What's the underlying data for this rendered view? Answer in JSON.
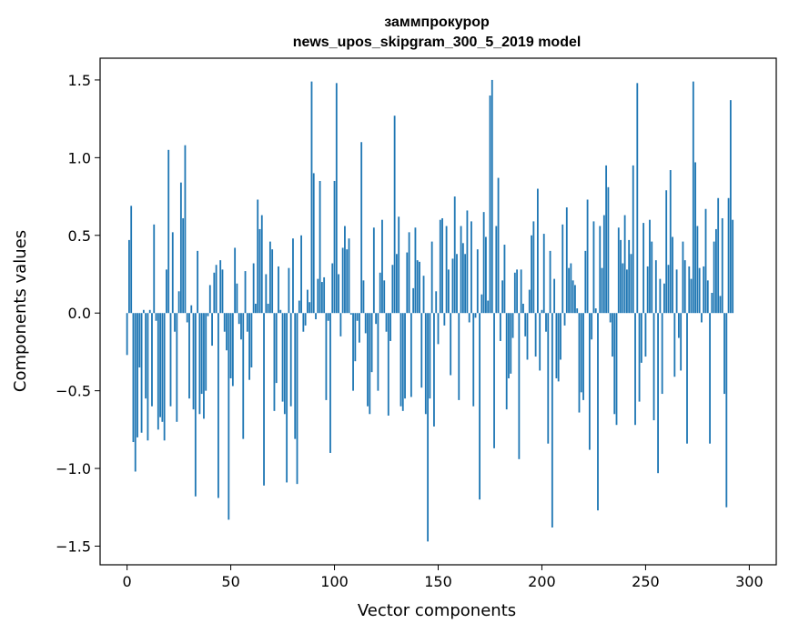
{
  "chart_data": {
    "type": "bar",
    "title": "заммпрокурор",
    "subtitle": "news_upos_skipgram_300_5_2019 model",
    "xlabel": "Vector components",
    "ylabel": "Components values",
    "xlim": [
      -13,
      313
    ],
    "ylim": [
      -1.62,
      1.64
    ],
    "xticks": [
      0,
      50,
      100,
      150,
      200,
      250,
      300
    ],
    "yticks": [
      -1.5,
      -1.0,
      -0.5,
      0.0,
      0.5,
      1.0,
      1.5
    ],
    "grid": false,
    "bar_color": "#1f77b4",
    "values": [
      -0.27,
      0.47,
      0.69,
      -0.83,
      -1.02,
      -0.8,
      -0.35,
      -0.77,
      0.02,
      -0.55,
      -0.82,
      0.02,
      -0.6,
      0.57,
      -0.05,
      -0.75,
      -0.67,
      -0.7,
      -0.82,
      0.28,
      1.05,
      -0.6,
      0.52,
      -0.12,
      -0.7,
      0.14,
      0.84,
      0.61,
      1.08,
      -0.06,
      -0.55,
      0.05,
      -0.62,
      -1.18,
      0.4,
      -0.65,
      -0.52,
      -0.68,
      -0.5,
      -0.02,
      0.18,
      -0.21,
      0.26,
      0.31,
      -1.19,
      0.34,
      0.28,
      -0.12,
      -0.24,
      -1.33,
      -0.42,
      -0.47,
      0.42,
      0.19,
      -0.07,
      -0.17,
      -0.81,
      0.27,
      -0.12,
      -0.43,
      -0.35,
      0.32,
      0.06,
      0.73,
      0.54,
      0.63,
      -1.11,
      0.25,
      0.06,
      0.46,
      0.41,
      -0.63,
      -0.45,
      0.3,
      0.02,
      -0.57,
      -0.65,
      -1.09,
      0.29,
      -0.6,
      0.48,
      -0.81,
      -1.1,
      0.08,
      0.5,
      -0.12,
      -0.08,
      0.15,
      0.07,
      1.49,
      0.9,
      -0.04,
      0.22,
      0.85,
      0.2,
      0.23,
      -0.56,
      -0.05,
      -0.9,
      0.32,
      0.85,
      1.48,
      0.25,
      -0.15,
      0.42,
      0.56,
      0.41,
      0.48,
      -0.01,
      -0.5,
      -0.31,
      -0.05,
      -0.19,
      1.1,
      0.21,
      -0.13,
      -0.6,
      -0.65,
      -0.38,
      0.55,
      -0.07,
      -0.5,
      0.26,
      0.6,
      0.21,
      -0.12,
      -0.66,
      -0.18,
      0.31,
      1.27,
      0.38,
      0.62,
      -0.6,
      -0.63,
      -0.55,
      0.39,
      0.52,
      -0.54,
      0.16,
      0.55,
      0.34,
      0.33,
      -0.48,
      0.24,
      -0.65,
      -1.47,
      -0.55,
      0.46,
      -0.73,
      0.14,
      -0.2,
      0.6,
      0.61,
      -0.08,
      0.56,
      0.28,
      -0.4,
      0.35,
      0.75,
      0.38,
      -0.56,
      0.56,
      0.45,
      0.38,
      0.66,
      -0.06,
      0.59,
      -0.6,
      -0.03,
      0.41,
      -1.2,
      0.12,
      0.65,
      0.49,
      0.08,
      1.4,
      1.5,
      -0.87,
      0.56,
      0.87,
      -0.18,
      0.21,
      0.44,
      -0.62,
      -0.42,
      -0.39,
      -0.16,
      0.26,
      0.28,
      -0.94,
      0.28,
      0.06,
      -0.15,
      -0.3,
      0.15,
      0.5,
      0.59,
      -0.28,
      0.8,
      -0.37,
      0.02,
      0.51,
      -0.12,
      -0.84,
      0.4,
      -1.38,
      0.22,
      -0.42,
      -0.44,
      -0.3,
      0.57,
      -0.08,
      0.68,
      0.29,
      0.32,
      0.21,
      0.18,
      0.03,
      -0.64,
      -0.51,
      -0.56,
      0.4,
      0.73,
      -0.88,
      -0.17,
      0.59,
      0.03,
      -1.27,
      0.56,
      0.29,
      0.63,
      0.95,
      0.81,
      -0.06,
      -0.28,
      -0.65,
      -0.72,
      0.55,
      0.47,
      0.32,
      0.63,
      0.28,
      0.47,
      0.38,
      0.95,
      -0.72,
      1.48,
      -0.57,
      -0.32,
      0.58,
      -0.28,
      0.3,
      0.6,
      0.46,
      -0.69,
      0.34,
      -1.03,
      0.22,
      -0.52,
      0.19,
      0.79,
      0.31,
      0.92,
      0.49,
      -0.41,
      0.28,
      -0.16,
      -0.37,
      0.46,
      0.34,
      -0.84,
      0.3,
      0.22,
      1.49,
      0.97,
      0.56,
      0.29,
      -0.06,
      0.3,
      0.67,
      0.21,
      -0.84,
      0.13,
      0.46,
      0.54,
      0.74,
      0.11,
      0.61,
      -0.52,
      -1.25,
      0.74,
      1.37,
      0.6
    ]
  }
}
